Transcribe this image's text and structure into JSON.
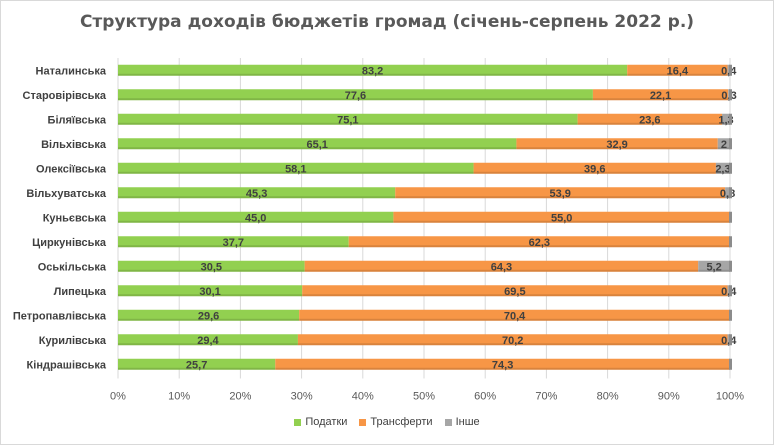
{
  "chart_data": {
    "type": "bar",
    "orientation": "horizontal",
    "stacked": "percent",
    "title": "Структура доходів бюджетів громад (січень-серпень 2022 р.)",
    "categories": [
      "Наталинська",
      "Старовірівська",
      "Біляївська",
      "Вільхівська",
      "Олексіївська",
      "Вільхуватська",
      "Куньєвська",
      "Циркунівська",
      "Оськільська",
      "Липецька",
      "Петропавлівська",
      "Курилівська",
      "Кіндрашівська"
    ],
    "series": [
      {
        "name": "Податки",
        "color": "#92d050",
        "values": [
          83.2,
          77.6,
          75.1,
          65.1,
          58.1,
          45.3,
          45.0,
          37.7,
          30.5,
          30.1,
          29.6,
          29.4,
          25.7
        ],
        "labels": [
          "83,2",
          "77,6",
          "75,1",
          "65,1",
          "58,1",
          "45,3",
          "45,0",
          "37,7",
          "30,5",
          "30,1",
          "29,6",
          "29,4",
          "25,7"
        ]
      },
      {
        "name": "Трансферти",
        "color": "#f79646",
        "values": [
          16.4,
          22.1,
          23.6,
          32.9,
          39.6,
          53.9,
          55.0,
          62.3,
          64.3,
          69.5,
          70.4,
          70.2,
          74.3
        ],
        "labels": [
          "16,4",
          "22,1",
          "23,6",
          "32,9",
          "39,6",
          "53,9",
          "55,0",
          "62,3",
          "64,3",
          "69,5",
          "70,4",
          "70,2",
          "74,3"
        ]
      },
      {
        "name": "Інше",
        "color": "#a6a6a6",
        "values": [
          0.4,
          0.3,
          1.3,
          2.0,
          2.3,
          0.8,
          0.0,
          0.0,
          5.2,
          0.4,
          0.0,
          0.4,
          0.0
        ],
        "labels": [
          "0,4",
          "0,3",
          "1,3",
          "2",
          "2,3",
          "0,8",
          "",
          "",
          "5,2",
          "0,4",
          "",
          "0,4",
          ""
        ]
      }
    ],
    "xlim": [
      0,
      100
    ],
    "x_ticks": [
      "0%",
      "10%",
      "20%",
      "30%",
      "40%",
      "50%",
      "60%",
      "70%",
      "80%",
      "90%",
      "100%"
    ],
    "grid": true,
    "legend_position": "bottom"
  }
}
